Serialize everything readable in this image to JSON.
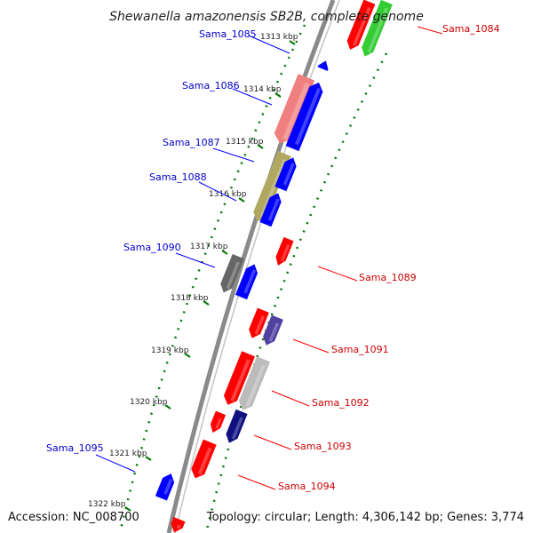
{
  "title": "Shewanella amazonensis SB2B, complete genome",
  "footer": {
    "accession": "Accession: NC_008700",
    "topology": "Topology: circular; Length: 4,306,142 bp; Genes: 3,774"
  },
  "colors": {
    "forward": "#0000ff",
    "reverse": "#ff0000",
    "ticks": "#007700",
    "backbone": "#888888"
  },
  "ticks": [
    {
      "label": "1313 kbp"
    },
    {
      "label": "1314 kbp"
    },
    {
      "label": "1315 kbp"
    },
    {
      "label": "1316 kbp"
    },
    {
      "label": "1317 kbp"
    },
    {
      "label": "1318 kbp"
    },
    {
      "label": "1319 kbp"
    },
    {
      "label": "1320 kbp"
    },
    {
      "label": "1321 kbp"
    },
    {
      "label": "1322 kbp"
    }
  ],
  "genes": [
    {
      "name": "Sama_1084",
      "strand": "reverse",
      "color": "#ff0000"
    },
    {
      "name": "Sama_1085",
      "strand": "forward",
      "color": "#0000ff"
    },
    {
      "name": "Sama_1086",
      "strand": "forward",
      "color": "#0000ff"
    },
    {
      "name": "Sama_1087",
      "strand": "forward",
      "color": "#0000ff"
    },
    {
      "name": "Sama_1088",
      "strand": "forward",
      "color": "#0000ff"
    },
    {
      "name": "Sama_1089",
      "strand": "reverse",
      "color": "#ff0000"
    },
    {
      "name": "Sama_1090",
      "strand": "forward",
      "color": "#0000ff"
    },
    {
      "name": "Sama_1091",
      "strand": "reverse",
      "color": "#ff0000"
    },
    {
      "name": "Sama_1092",
      "strand": "reverse",
      "color": "#ff0000"
    },
    {
      "name": "Sama_1093",
      "strand": "reverse",
      "color": "#ff0000"
    },
    {
      "name": "Sama_1094",
      "strand": "reverse",
      "color": "#ff0000"
    },
    {
      "name": "Sama_1095",
      "strand": "forward",
      "color": "#0000ff"
    }
  ]
}
